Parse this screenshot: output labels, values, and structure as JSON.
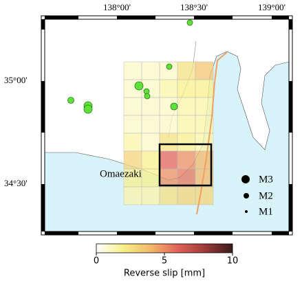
{
  "map": {
    "lon_labels": [
      "138°00'",
      "138°30'",
      "139°00'"
    ],
    "lat_labels": [
      "35°00'",
      "34°30'"
    ],
    "place_label": "Omaezaki",
    "legend": [
      "M3",
      "M2",
      "M1"
    ],
    "slip_grid": [
      [
        1,
        1,
        1,
        2.5,
        3.5
      ],
      [
        1,
        1,
        1.5,
        2,
        2
      ],
      [
        1,
        1,
        1,
        1.5,
        1.5
      ],
      [
        1,
        1,
        1,
        1.5,
        1.5
      ],
      [
        1.5,
        1,
        2.5,
        2,
        1.5
      ],
      [
        3,
        2,
        6,
        5,
        4
      ],
      [
        2,
        2,
        5,
        5.5,
        4
      ],
      [
        1.5,
        1.5,
        2.5,
        3,
        3
      ]
    ],
    "colorbar": {
      "label": "Reverse slip [mm]",
      "lim": [
        0,
        10
      ],
      "ticks": [
        0,
        5,
        10
      ]
    }
  }
}
